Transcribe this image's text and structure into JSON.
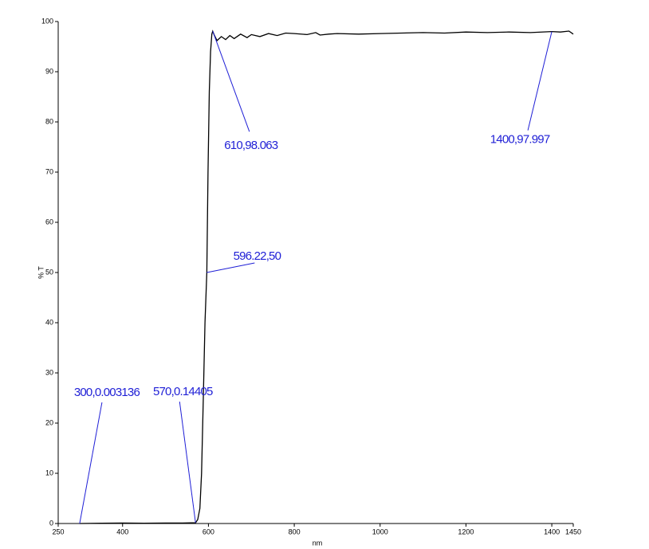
{
  "chart_data": {
    "type": "line",
    "x_label": "nm",
    "y_label": "% T",
    "xlim": [
      250,
      1450
    ],
    "ylim": [
      0,
      100
    ],
    "xticks": [
      250,
      400,
      600,
      800,
      1000,
      1200,
      1400,
      1450
    ],
    "yticks": [
      0,
      10,
      20,
      30,
      40,
      50,
      60,
      70,
      80,
      90,
      100
    ],
    "series": [
      {
        "color": "#000000",
        "x": [
          300,
          350,
          400,
          450,
          500,
          540,
          560,
          570,
          575,
          580,
          584,
          588,
          592,
          596.22,
          599,
          602,
          605,
          608,
          610,
          614,
          620,
          630,
          640,
          650,
          660,
          675,
          690,
          700,
          720,
          740,
          760,
          780,
          800,
          830,
          850,
          860,
          880,
          900,
          950,
          1000,
          1050,
          1100,
          1150,
          1200,
          1250,
          1300,
          1350,
          1400,
          1420,
          1440,
          1450
        ],
        "values": [
          0.003,
          0.05,
          0.1,
          0.05,
          0.1,
          0.1,
          0.12,
          0.144,
          0.8,
          3,
          10,
          25,
          40,
          50,
          70,
          86,
          94,
          97.5,
          98.06,
          97.2,
          96.2,
          97,
          96.4,
          97.2,
          96.6,
          97.5,
          96.8,
          97.4,
          97,
          97.6,
          97.2,
          97.7,
          97.6,
          97.4,
          97.8,
          97.3,
          97.5,
          97.6,
          97.5,
          97.6,
          97.7,
          97.8,
          97.7,
          97.9,
          97.8,
          97.9,
          97.8,
          98,
          97.9,
          98.1,
          97.5
        ]
      }
    ],
    "annotations": [
      {
        "x": 300,
        "y": 0.003136,
        "label": "300,0.003136"
      },
      {
        "x": 570,
        "y": 0.14405,
        "label": "570,0.14405"
      },
      {
        "x": 596.22,
        "y": 50,
        "label": "596.22,50"
      },
      {
        "x": 610,
        "y": 98.063,
        "label": "610,98.063"
      },
      {
        "x": 1400,
        "y": 97.997,
        "label": "1400,97.997"
      }
    ]
  }
}
